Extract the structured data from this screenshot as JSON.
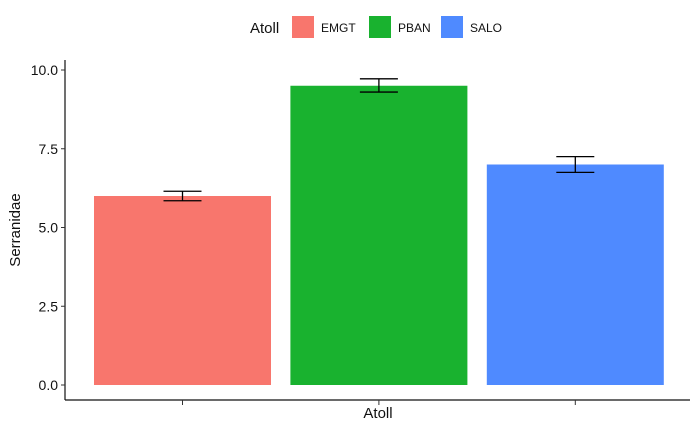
{
  "chart_data": {
    "type": "bar",
    "categories": [
      "EMGT",
      "PBAN",
      "SALO"
    ],
    "values": [
      6.0,
      9.5,
      7.0
    ],
    "error_low": [
      5.85,
      9.3,
      6.75
    ],
    "error_high": [
      6.15,
      9.72,
      7.25
    ],
    "colors": [
      "#F8766D",
      "#19B22F",
      "#4F8AFF"
    ],
    "xlabel": "Atoll",
    "ylabel": "Serranidae",
    "ylim": [
      0,
      10
    ],
    "yticks": [
      0.0,
      2.5,
      5.0,
      7.5,
      10.0
    ],
    "ytick_labels": [
      "0.0",
      "2.5",
      "5.0",
      "7.5",
      "10.0"
    ],
    "grid": false,
    "legend": {
      "title": "Atoll",
      "position": "top",
      "items": [
        "EMGT",
        "PBAN",
        "SALO"
      ]
    }
  }
}
